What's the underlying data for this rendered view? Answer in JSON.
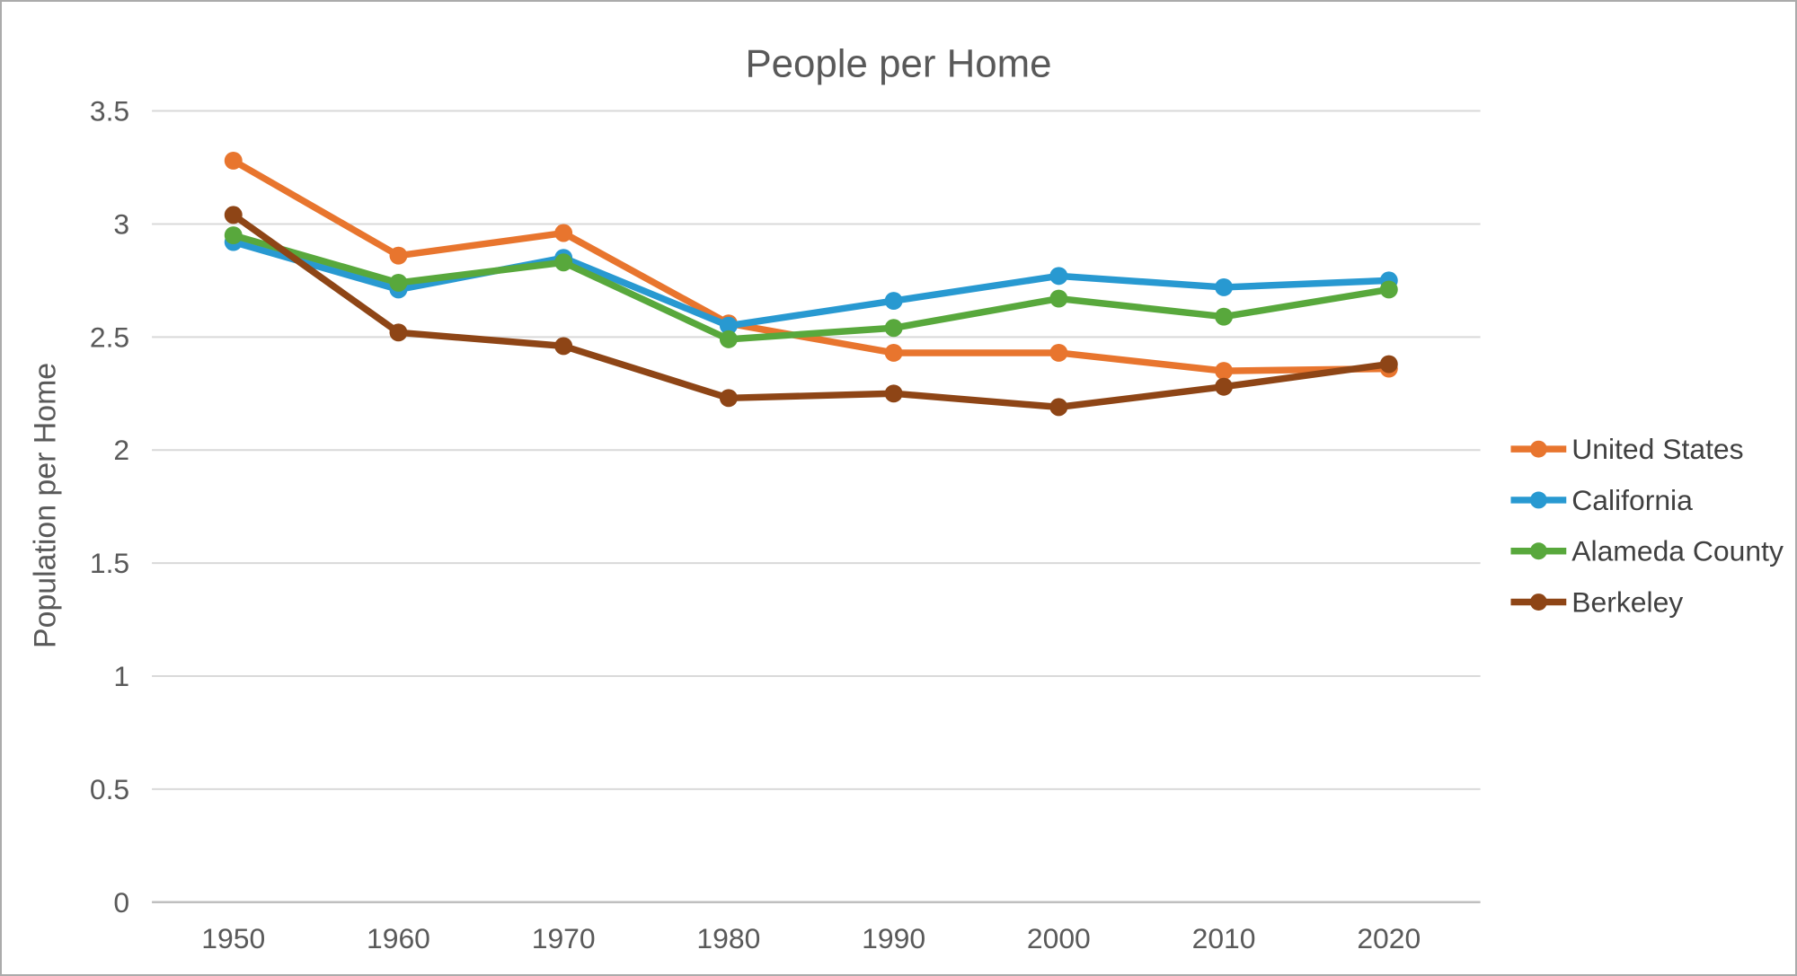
{
  "chart_data": {
    "type": "line",
    "title": "People per Home",
    "xlabel": "",
    "ylabel": "Population per Home",
    "categories": [
      "1950",
      "1960",
      "1970",
      "1980",
      "1990",
      "2000",
      "2010",
      "2020"
    ],
    "series": [
      {
        "name": "United States",
        "color": "#E8752E",
        "values": [
          3.28,
          2.86,
          2.96,
          2.56,
          2.43,
          2.43,
          2.35,
          2.36
        ]
      },
      {
        "name": "California",
        "color": "#2899D1",
        "values": [
          2.92,
          2.71,
          2.85,
          2.55,
          2.66,
          2.77,
          2.72,
          2.75
        ]
      },
      {
        "name": "Alameda County",
        "color": "#58A83C",
        "values": [
          2.95,
          2.74,
          2.83,
          2.49,
          2.54,
          2.67,
          2.59,
          2.71
        ]
      },
      {
        "name": "Berkeley",
        "color": "#8E4516",
        "values": [
          3.04,
          2.52,
          2.46,
          2.23,
          2.25,
          2.19,
          2.28,
          2.38
        ]
      }
    ],
    "ylim": [
      0,
      3.5
    ],
    "yticks": [
      "0",
      "0.5",
      "1",
      "1.5",
      "2",
      "2.5",
      "3",
      "3.5"
    ],
    "grid": true,
    "legend_position": "right",
    "marker": "circle",
    "colors": {
      "title_text": "#595959",
      "axis_text": "#595959",
      "legend_text": "#404040",
      "gridline": "#D9D9D9",
      "axis_line": "#BFBFBF",
      "background": "#FFFFFF",
      "frame_border": "#ABABAB"
    }
  }
}
